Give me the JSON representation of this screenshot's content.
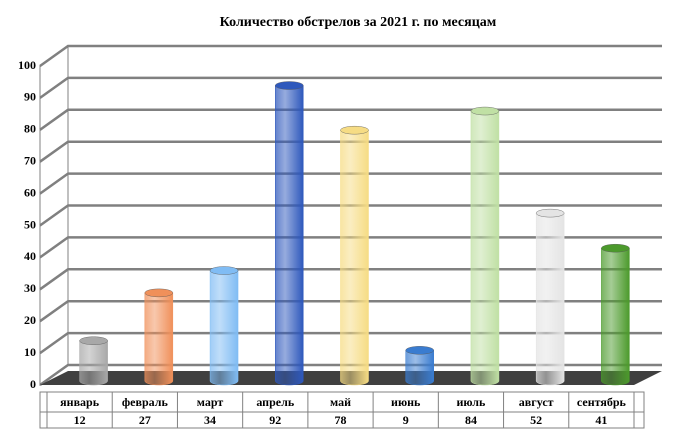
{
  "chart_data": {
    "type": "bar3d",
    "title": "Количество обстрелов за 2021 г. по месяцам",
    "categories": [
      "январь",
      "февраль",
      "март",
      "апрель",
      "май",
      "июнь",
      "июль",
      "август",
      "сентябрь"
    ],
    "values": [
      12,
      27,
      34,
      92,
      78,
      9,
      84,
      52,
      41
    ],
    "colors": [
      "#a8a8a8",
      "#f0905a",
      "#80bcf4",
      "#2e58bc",
      "#f6dc84",
      "#3a7cd0",
      "#c0e0a4",
      "#e4e4e4",
      "#4c9a2c"
    ],
    "ylim": [
      0,
      100
    ],
    "yticks": [
      0,
      10,
      20,
      30,
      40,
      50,
      60,
      70,
      80,
      90,
      100
    ],
    "grid": true,
    "data_table": true
  }
}
